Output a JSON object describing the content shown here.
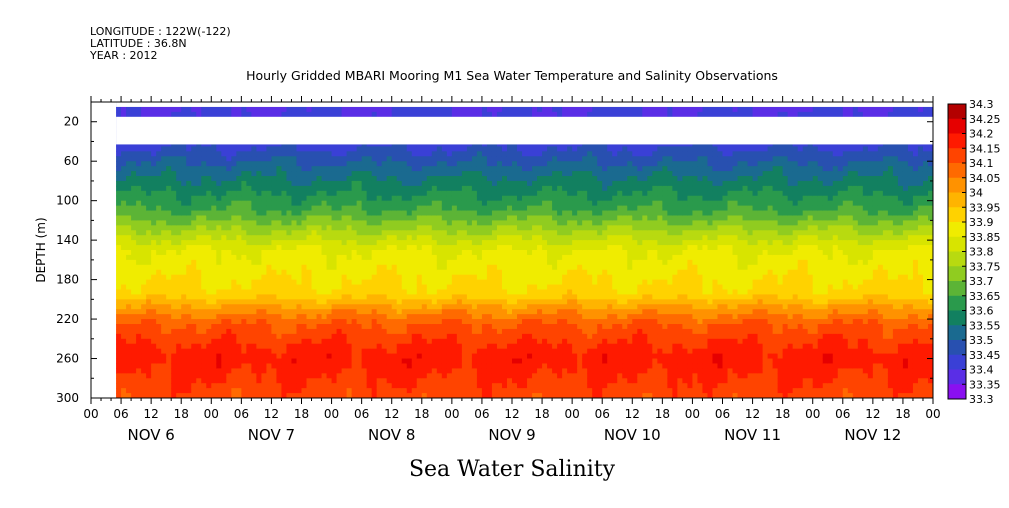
{
  "header": {
    "longitude": "LONGITUDE : 122W(-122)",
    "latitude": "LATITUDE : 36.8N",
    "year": "YEAR : 2012"
  },
  "chart_data": {
    "type": "heatmap",
    "title": "Hourly Gridded MBARI Mooring M1 Sea Water Temperature and Salinity Observations",
    "variable_label": "Sea Water Salinity",
    "ylabel": "DEPTH (m)",
    "x_hour_ticks": [
      "00",
      "06",
      "12",
      "18"
    ],
    "x_day_labels": [
      "NOV  6",
      "NOV  7",
      "NOV  8",
      "NOV  9",
      "NOV 10",
      "NOV 11",
      "NOV 12"
    ],
    "x_range_hours": [
      0,
      168
    ],
    "data_start_hour": 5,
    "y_ticks": [
      20,
      60,
      100,
      140,
      180,
      220,
      260,
      300
    ],
    "ylim": [
      300,
      0
    ],
    "colorbar_levels": [
      "34.3",
      "34.25",
      "34.2",
      "34.15",
      "34.1",
      "34.05",
      "34",
      "33.95",
      "33.9",
      "33.85",
      "33.8",
      "33.75",
      "33.7",
      "33.65",
      "33.6",
      "33.55",
      "33.5",
      "33.45",
      "33.4",
      "33.35",
      "33.3"
    ],
    "colorbar_colors": [
      "#b30000",
      "#e60000",
      "#ff1a00",
      "#ff4400",
      "#ff6a00",
      "#ff9200",
      "#ffb400",
      "#ffd200",
      "#f0ec00",
      "#d8e400",
      "#b8da10",
      "#90cc20",
      "#5cb436",
      "#2a9a4c",
      "#128060",
      "#1a6a90",
      "#2850b0",
      "#3a40d6",
      "#5a2ee6",
      "#8a10f0",
      "#c000f0"
    ],
    "depth_profile": [
      {
        "depth": 10,
        "value": 33.45
      },
      {
        "depth": 45,
        "value": 33.49
      },
      {
        "depth": 70,
        "value": 33.58
      },
      {
        "depth": 90,
        "value": 33.64
      },
      {
        "depth": 110,
        "value": 33.7
      },
      {
        "depth": 130,
        "value": 33.8
      },
      {
        "depth": 150,
        "value": 33.9
      },
      {
        "depth": 175,
        "value": 33.94
      },
      {
        "depth": 195,
        "value": 33.97
      },
      {
        "depth": 210,
        "value": 34.07
      },
      {
        "depth": 225,
        "value": 34.15
      },
      {
        "depth": 245,
        "value": 34.2
      },
      {
        "depth": 260,
        "value": 34.23
      },
      {
        "depth": 280,
        "value": 34.2
      },
      {
        "depth": 300,
        "value": 34.17
      }
    ],
    "missing_depth_bands": [
      [
        0,
        5
      ],
      [
        15,
        43
      ]
    ]
  }
}
